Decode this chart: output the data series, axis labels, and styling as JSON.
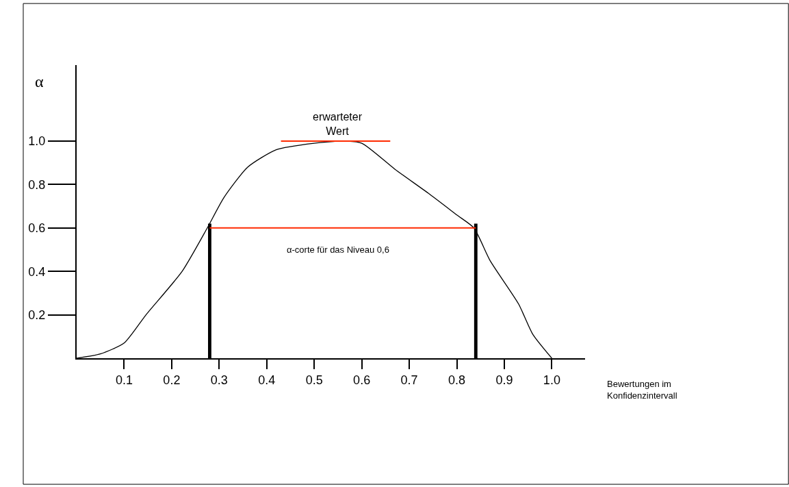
{
  "chart_data": {
    "type": "line",
    "xlabel": "Bewertungen im Konfidenzintervall",
    "ylabel": "α",
    "x": [
      0,
      0.05,
      0.1,
      0.146,
      0.222,
      0.275,
      0.31,
      0.36,
      0.42,
      0.5,
      0.56,
      0.6,
      0.67,
      0.74,
      0.8,
      0.836,
      0.87,
      0.93,
      0.96,
      1.0
    ],
    "series": [
      {
        "color": "#000000",
        "values": [
          0,
          0.02,
          0.07,
          0.2,
          0.4,
          0.6,
          0.74,
          0.88,
          0.96,
          0.99,
          1.0,
          0.99,
          0.87,
          0.76,
          0.66,
          0.6,
          0.45,
          0.25,
          0.11,
          0
        ]
      },
      {
        "type": "line",
        "color": "#ff2a00",
        "x": [
          0.43,
          0.66
        ],
        "values": [
          1.0,
          1.0
        ]
      },
      {
        "type": "line",
        "color": "#ff2a00",
        "x": [
          0.28,
          0.84
        ],
        "values": [
          0.6,
          0.6
        ]
      },
      {
        "type": "bar",
        "color": "#000000",
        "x": [
          0.28,
          0.84
        ],
        "values": [
          0.62,
          0.62
        ]
      }
    ],
    "annotations": [
      {
        "text": "erwarteter Wert",
        "x": 0.55,
        "y": 1.0
      },
      {
        "text": "α-corte für das Niveau 0,6",
        "x": 0.55,
        "y": 0.6
      }
    ],
    "xlim": [
      0,
      1.07
    ],
    "ylim": [
      0,
      1.35
    ],
    "xticks": [
      0.1,
      0.2,
      0.3,
      0.4,
      0.5,
      0.6,
      0.7,
      0.8,
      0.9,
      {
        "value": 1,
        "label": "1.0"
      }
    ],
    "yticks": [
      0.2,
      0.4,
      0.6,
      0.8,
      {
        "value": 1,
        "label": "1.0"
      }
    ],
    "marker": "none",
    "line_style": "solid"
  }
}
